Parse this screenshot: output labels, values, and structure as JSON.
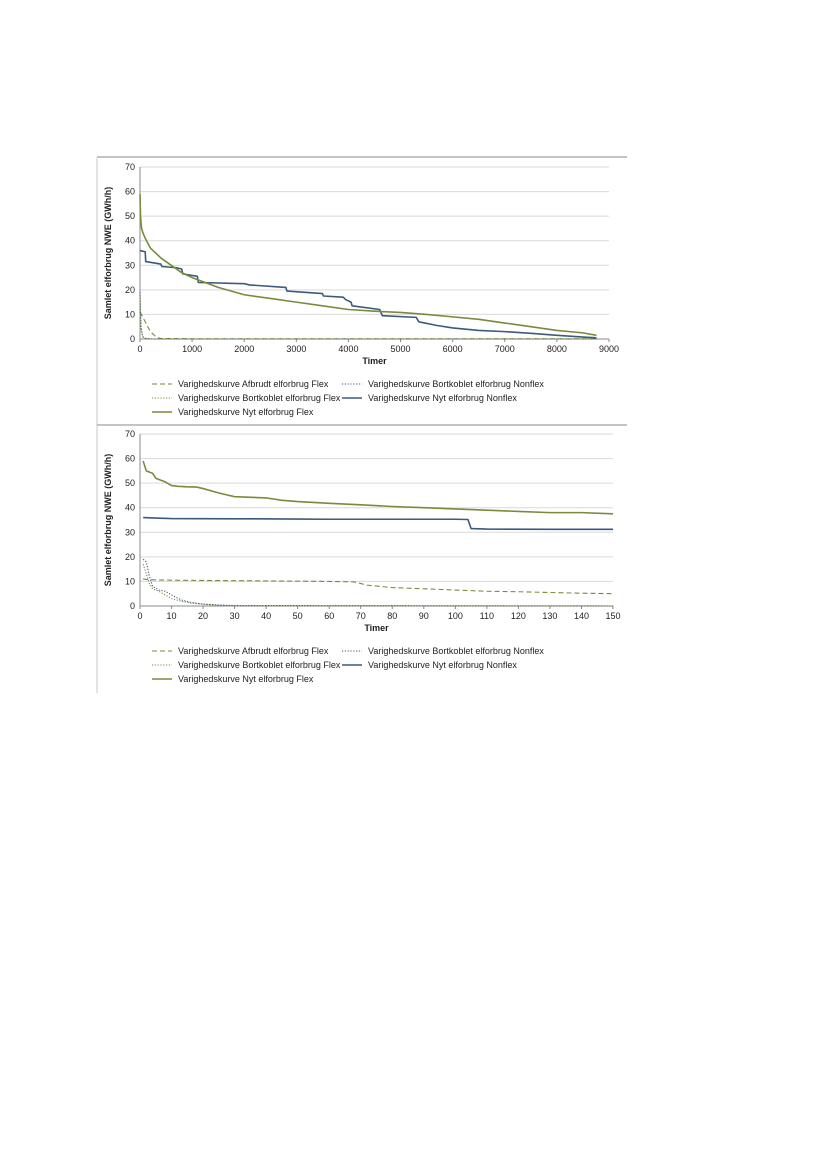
{
  "colors": {
    "olive": "#7a8a3c",
    "navy": "#3c5a7c",
    "grid": "#d9d9d9",
    "axis": "#888888",
    "border": "#c8c8c8"
  },
  "chart_data": [
    {
      "type": "line",
      "xlabel": "Timer",
      "ylabel": "Samlet elforbrug NWE (GWh/h)",
      "xlim": [
        0,
        9000
      ],
      "ylim": [
        0,
        70
      ],
      "xticks": [
        "0",
        "1000",
        "2000",
        "3000",
        "4000",
        "5000",
        "6000",
        "7000",
        "8000",
        "9000"
      ],
      "yticks": [
        "0",
        "10",
        "20",
        "30",
        "40",
        "50",
        "60",
        "70"
      ],
      "grid": "horizontal",
      "legend_position": "bottom",
      "series": [
        {
          "name": "Varighedskurve Afbrudt elforbrug Flex",
          "style": "dashed",
          "color": "#7a8a3c",
          "x": [
            0,
            50,
            100,
            150,
            200,
            300,
            350,
            400,
            1000,
            5000,
            8760
          ],
          "y": [
            11,
            9,
            7,
            5,
            3,
            1,
            0.5,
            0.2,
            0.1,
            0.1,
            0.1
          ]
        },
        {
          "name": "Varighedskurve Bortkoblet elforbrug Nonflex",
          "style": "dotted",
          "color": "#3c5a7c",
          "x": [
            0,
            20,
            50,
            100,
            200,
            8760
          ],
          "y": [
            19,
            5,
            1,
            0.3,
            0,
            0
          ]
        },
        {
          "name": "Varighedskurve Bortkoblet elforbrug Flex",
          "style": "dotted",
          "color": "#7a8a3c",
          "x": [
            0,
            20,
            50,
            100,
            200,
            8760
          ],
          "y": [
            17,
            4,
            1,
            0.2,
            0,
            0
          ]
        },
        {
          "name": "Varighedskurve Nyt elforbrug Nonflex",
          "style": "solid",
          "color": "#3c5a7c",
          "x": [
            0,
            100,
            110,
            400,
            420,
            700,
            800,
            820,
            1100,
            1120,
            2000,
            2100,
            2800,
            2820,
            3500,
            3520,
            3900,
            3950,
            4050,
            4070,
            4600,
            4650,
            5300,
            5350,
            5700,
            6000,
            6500,
            7000,
            7500,
            8000,
            8500,
            8760
          ],
          "y": [
            36,
            35.5,
            31.5,
            30.5,
            29.5,
            29,
            28.5,
            26.5,
            25.5,
            23,
            22.5,
            22,
            21,
            19.5,
            18.5,
            17.5,
            17,
            16,
            15,
            13.5,
            12,
            9.5,
            8.8,
            7,
            5.5,
            4.5,
            3.5,
            3,
            2.3,
            1.5,
            0.8,
            0.5
          ]
        },
        {
          "name": "Varighedskurve Nyt elforbrug Flex",
          "style": "solid",
          "color": "#7a8a3c",
          "x": [
            0,
            10,
            30,
            60,
            100,
            200,
            400,
            600,
            800,
            1000,
            1500,
            2000,
            2500,
            3000,
            3500,
            4000,
            4500,
            5000,
            5500,
            6000,
            6500,
            7000,
            7500,
            8000,
            8500,
            8760
          ],
          "y": [
            59,
            50,
            45,
            43,
            41,
            37,
            33,
            30,
            27,
            25,
            21,
            18,
            16.5,
            15,
            13.5,
            12,
            11.3,
            10.8,
            10,
            9,
            8,
            6.5,
            5,
            3.5,
            2.5,
            1.5
          ]
        }
      ]
    },
    {
      "type": "line",
      "xlabel": "Timer",
      "ylabel": "Samlet elforbrug NWE (GWh/h)",
      "xlim": [
        0,
        150
      ],
      "ylim": [
        0,
        70
      ],
      "xticks": [
        "0",
        "10",
        "20",
        "30",
        "40",
        "50",
        "60",
        "70",
        "80",
        "90",
        "100",
        "110",
        "120",
        "130",
        "140",
        "150"
      ],
      "yticks": [
        "0",
        "10",
        "20",
        "30",
        "40",
        "50",
        "60",
        "70"
      ],
      "grid": "horizontal",
      "legend_position": "bottom",
      "series": [
        {
          "name": "Varighedskurve Afbrudt elforbrug Flex",
          "style": "dashed",
          "color": "#7a8a3c",
          "x": [
            1,
            2,
            5,
            10,
            20,
            30,
            40,
            50,
            60,
            68,
            72,
            80,
            90,
            100,
            110,
            120,
            130,
            140,
            150
          ],
          "y": [
            11,
            10.8,
            10.6,
            10.5,
            10.4,
            10.3,
            10.2,
            10.1,
            10,
            9.8,
            8.5,
            7.5,
            7,
            6.5,
            6,
            5.8,
            5.5,
            5.2,
            5
          ]
        },
        {
          "name": "Varighedskurve Bortkoblet elforbrug Nonflex",
          "style": "dotted",
          "color": "#3c5a7c",
          "x": [
            1,
            2,
            3,
            4,
            6,
            8,
            10,
            13,
            16,
            20,
            25,
            30,
            150
          ],
          "y": [
            19,
            18,
            12,
            8,
            6.5,
            6,
            4.5,
            2.5,
            1.5,
            0.8,
            0.4,
            0.2,
            0
          ]
        },
        {
          "name": "Varighedskurve Bortkoblet elforbrug Flex",
          "style": "dotted",
          "color": "#7a8a3c",
          "x": [
            1,
            2,
            3,
            4,
            6,
            8,
            10,
            13,
            16,
            20,
            25,
            30,
            150
          ],
          "y": [
            17,
            13,
            9,
            7,
            6,
            4.5,
            3,
            2,
            1.2,
            0.7,
            0.3,
            0.1,
            0
          ]
        },
        {
          "name": "Varighedskurve Nyt elforbrug Nonflex",
          "style": "solid",
          "color": "#3c5a7c",
          "x": [
            1,
            5,
            10,
            30,
            50,
            60,
            80,
            100,
            104,
            105,
            110,
            130,
            150
          ],
          "y": [
            36,
            35.8,
            35.6,
            35.5,
            35.4,
            35.3,
            35.3,
            35.3,
            35.2,
            31.5,
            31.3,
            31.2,
            31.2
          ]
        },
        {
          "name": "Varighedskurve Nyt elforbrug Flex",
          "style": "solid",
          "color": "#7a8a3c",
          "x": [
            1,
            2,
            3,
            4,
            5,
            6,
            8,
            10,
            12,
            15,
            18,
            20,
            25,
            30,
            40,
            45,
            50,
            60,
            70,
            80,
            90,
            100,
            110,
            120,
            130,
            140,
            150
          ],
          "y": [
            59,
            55,
            54.5,
            54,
            52,
            51.5,
            50.5,
            49,
            48.7,
            48.5,
            48.4,
            47.8,
            46,
            44.5,
            44,
            43,
            42.5,
            41.8,
            41.2,
            40.5,
            40,
            39.5,
            39,
            38.5,
            38,
            38,
            37.5
          ]
        }
      ]
    }
  ]
}
